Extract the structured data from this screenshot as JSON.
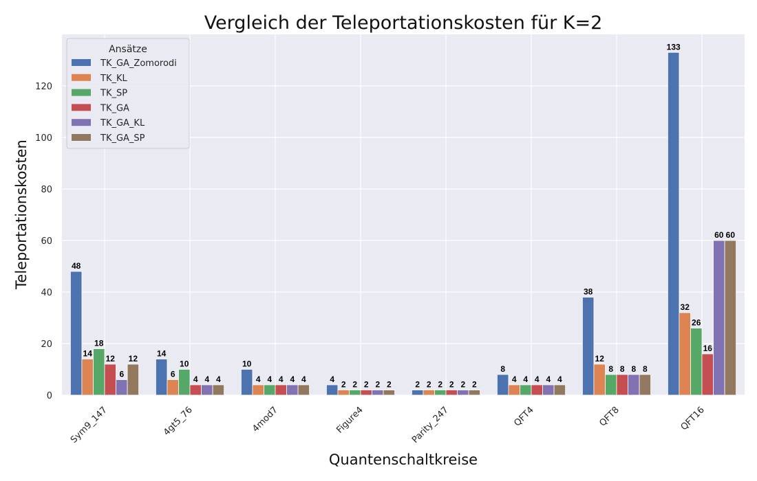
{
  "chart_data": {
    "type": "bar",
    "title": "Vergleich der Teleportationskosten für K=2",
    "xlabel": "Quantenschaltkreise",
    "ylabel": "Teleportationskosten",
    "categories": [
      "Sym9_147",
      "4gt5_76",
      "4mod7",
      "Figure4",
      "Parity_247",
      "QFT4",
      "QFT8",
      "QFT16"
    ],
    "ylim": [
      0,
      140
    ],
    "yticks": [
      0,
      20,
      40,
      60,
      80,
      100,
      120
    ],
    "legend": {
      "title": "Ansätze",
      "placement": "top-left"
    },
    "grid": true,
    "series": [
      {
        "name": "TK_GA_Zomorodi",
        "color": "#4c72b0",
        "values": [
          48,
          14,
          10,
          4,
          2,
          8,
          38,
          133
        ]
      },
      {
        "name": "TK_KL",
        "color": "#dd8452",
        "values": [
          14,
          6,
          4,
          2,
          2,
          4,
          12,
          32
        ]
      },
      {
        "name": "TK_SP",
        "color": "#55a868",
        "values": [
          18,
          10,
          4,
          2,
          2,
          4,
          8,
          26
        ]
      },
      {
        "name": "TK_GA",
        "color": "#c44e52",
        "values": [
          12,
          4,
          4,
          2,
          2,
          4,
          8,
          16
        ]
      },
      {
        "name": "TK_GA_KL",
        "color": "#8172b3",
        "values": [
          6,
          4,
          4,
          2,
          2,
          4,
          8,
          60
        ]
      },
      {
        "name": "TK_GA_SP",
        "color": "#937860",
        "values": [
          12,
          4,
          4,
          2,
          2,
          4,
          8,
          60
        ]
      }
    ]
  }
}
